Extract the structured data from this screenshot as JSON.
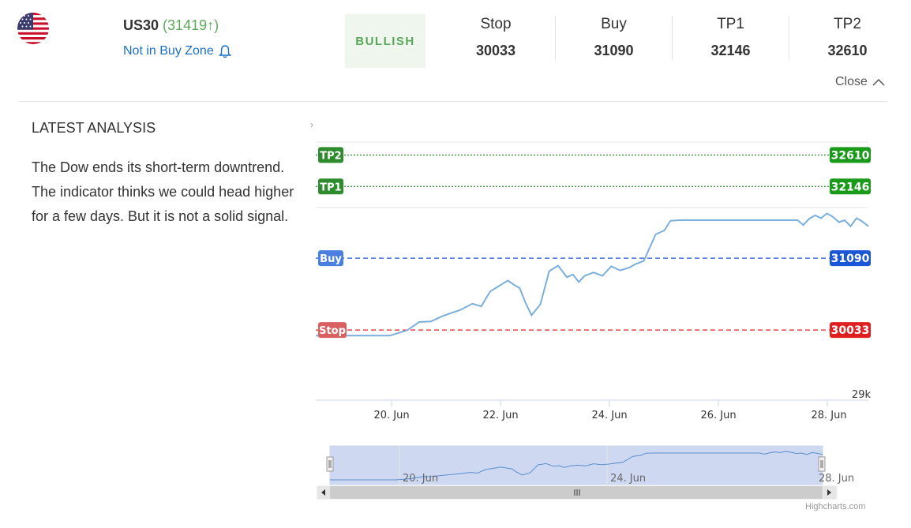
{
  "header": {
    "symbol": "US30",
    "price_text": "(31419↑)",
    "zone_status": "Not in Buy Zone",
    "sentiment": "BULLISH",
    "levels": [
      {
        "label": "Stop",
        "value": "30033"
      },
      {
        "label": "Buy",
        "value": "31090"
      },
      {
        "label": "TP1",
        "value": "32146"
      },
      {
        "label": "TP2",
        "value": "32610"
      }
    ],
    "close_label": "Close"
  },
  "analysis": {
    "title": "LATEST ANALYSIS",
    "text": "The Dow ends its short-term downtrend. The indicator thinks we could head higher for a few days. But it is not a solid signal."
  },
  "colors": {
    "tp": "#2e8b2e",
    "buy": "#1a56d6",
    "stop": "#e02020",
    "series": "#7aaedc"
  },
  "chart_data": {
    "type": "line",
    "x_tick_labels": [
      "20. Jun",
      "22. Jun",
      "24. Jun",
      "26. Jun",
      "28. Jun"
    ],
    "y_tick_labels": [
      "29k"
    ],
    "ylim": [
      29000,
      32800
    ],
    "xlim_days": [
      18.75,
      28.1
    ],
    "series": [
      {
        "x": [
          18.75,
          19.5,
          20.0,
          20.3,
          20.5,
          20.7,
          20.9,
          21.2,
          21.4,
          21.55,
          21.7,
          21.85,
          22.0,
          22.1,
          22.2,
          22.3,
          22.4,
          22.55,
          22.7,
          22.85,
          23.0,
          23.1,
          23.2,
          23.3,
          23.45,
          23.6,
          23.75,
          23.9,
          24.05,
          24.15,
          24.3,
          24.5,
          24.65,
          24.75,
          24.9,
          25.1,
          25.5,
          26.0,
          26.5,
          26.9,
          27.0,
          27.1,
          27.2,
          27.3,
          27.4,
          27.5,
          27.6,
          27.7,
          27.8,
          27.9,
          28.0,
          28.1
        ],
        "y": [
          29950,
          29950,
          29950,
          30030,
          30150,
          30160,
          30240,
          30330,
          30420,
          30380,
          30600,
          30680,
          30760,
          30700,
          30650,
          30430,
          30250,
          30410,
          30900,
          30980,
          30810,
          30850,
          30740,
          30830,
          30880,
          30830,
          30970,
          30910,
          30950,
          31000,
          31050,
          31440,
          31500,
          31640,
          31650,
          31650,
          31650,
          31650,
          31650,
          31650,
          31580,
          31670,
          31720,
          31680,
          31750,
          31700,
          31620,
          31650,
          31560,
          31680,
          31630,
          31560
        ]
      }
    ],
    "navigator_x_labels": [
      "20. Jun",
      "24. Jun",
      "28. Jun"
    ],
    "credits": "Highcharts.com"
  }
}
